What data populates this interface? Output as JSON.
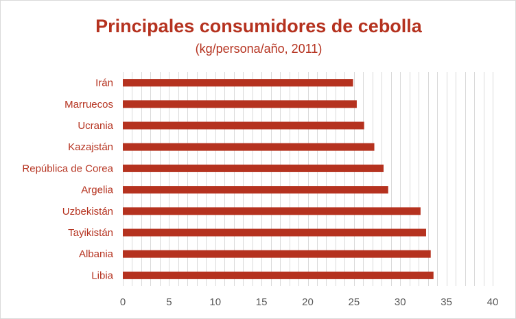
{
  "chart_data": {
    "type": "bar",
    "orientation": "horizontal",
    "title": "Principales consumidores de cebolla",
    "subtitle": "(kg/persona/año, 2011)",
    "categories": [
      "Irán",
      "Marruecos",
      "Ucrania",
      "Kazajstán",
      "República de Corea",
      "Argelia",
      "Uzbekistán",
      "Tayikistán",
      "Albania",
      "Libia"
    ],
    "values": [
      24.9,
      25.3,
      26.1,
      27.2,
      28.2,
      28.7,
      32.2,
      32.8,
      33.3,
      33.6
    ],
    "xlim": [
      0,
      40
    ],
    "xticks": [
      0,
      5,
      10,
      15,
      20,
      25,
      30,
      35,
      40
    ],
    "grid": "vertical",
    "legend": "none",
    "colors": {
      "bar": "#b5321f",
      "title": "#b5321f",
      "category_label": "#b5321f",
      "gridline": "#d9d9d9",
      "tick_label": "#595959"
    }
  }
}
